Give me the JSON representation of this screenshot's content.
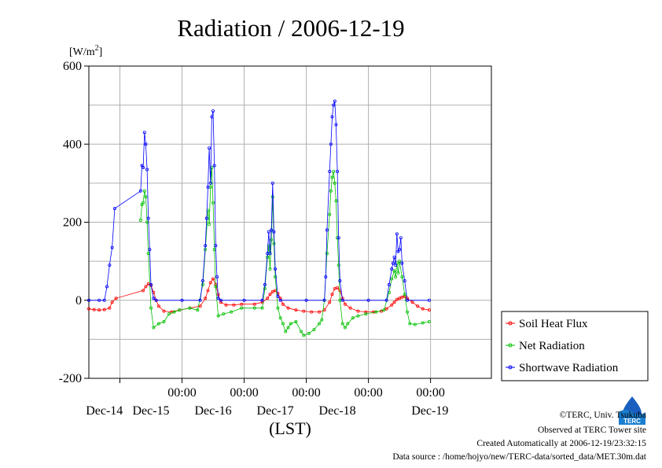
{
  "chart_data": {
    "type": "line",
    "title": "Radiation / 2006-12-19",
    "ylabel": "[W/m",
    "ylabel_sup": "2",
    "ylabel_close": "]",
    "xlabel": "(LST)",
    "ylim": [
      -200,
      600
    ],
    "yticks": [
      -200,
      0,
      200,
      400,
      600
    ],
    "xlim": [
      "2006-12-13T12:00",
      "2006-12-19T23:30"
    ],
    "x_time_ticks": [
      "00:00",
      "00:00",
      "00:00",
      "00:00",
      "00:00"
    ],
    "x_day_labels": [
      "Dec-14",
      "Dec-15",
      "Dec-16",
      "Dec-17",
      "Dec-18",
      "Dec-19"
    ],
    "grid": true,
    "legend_position": "bottom-right-outside",
    "series": [
      {
        "name": "Soil Heat Flux",
        "color": "#ff0000",
        "points": [
          [
            "2006-12-13T12:00",
            -22
          ],
          [
            "2006-12-13T14:00",
            -24
          ],
          [
            "2006-12-13T16:00",
            -25
          ],
          [
            "2006-12-13T18:00",
            -24
          ],
          [
            "2006-12-13T20:00",
            -20
          ],
          [
            "2006-12-13T21:00",
            -5
          ],
          [
            "2006-12-13T22:30",
            5
          ],
          [
            "2006-12-14T09:00",
            25
          ],
          [
            "2006-12-14T10:00",
            35
          ],
          [
            "2006-12-14T11:00",
            42
          ],
          [
            "2006-12-14T12:00",
            38
          ],
          [
            "2006-12-14T13:00",
            20
          ],
          [
            "2006-12-14T14:00",
            0
          ],
          [
            "2006-12-14T15:00",
            -15
          ],
          [
            "2006-12-14T17:00",
            -28
          ],
          [
            "2006-12-14T20:00",
            -30
          ],
          [
            "2006-12-14T23:00",
            -25
          ],
          [
            "2006-12-15T03:00",
            -20
          ],
          [
            "2006-12-15T07:00",
            -15
          ],
          [
            "2006-12-15T09:00",
            5
          ],
          [
            "2006-12-15T10:00",
            25
          ],
          [
            "2006-12-15T11:00",
            45
          ],
          [
            "2006-12-15T12:00",
            55
          ],
          [
            "2006-12-15T13:00",
            40
          ],
          [
            "2006-12-15T14:00",
            15
          ],
          [
            "2006-12-15T15:00",
            -5
          ],
          [
            "2006-12-15T17:00",
            -12
          ],
          [
            "2006-12-15T20:00",
            -12
          ],
          [
            "2006-12-15T23:00",
            -10
          ],
          [
            "2006-12-16T04:00",
            -10
          ],
          [
            "2006-12-16T07:00",
            -5
          ],
          [
            "2006-12-16T09:00",
            5
          ],
          [
            "2006-12-16T10:00",
            15
          ],
          [
            "2006-12-16T11:00",
            22
          ],
          [
            "2006-12-16T12:00",
            25
          ],
          [
            "2006-12-16T13:00",
            18
          ],
          [
            "2006-12-16T14:00",
            5
          ],
          [
            "2006-12-16T15:00",
            -10
          ],
          [
            "2006-12-16T17:00",
            -20
          ],
          [
            "2006-12-16T20:00",
            -25
          ],
          [
            "2006-12-16T23:00",
            -28
          ],
          [
            "2006-12-17T02:00",
            -30
          ],
          [
            "2006-12-17T05:00",
            -30
          ],
          [
            "2006-12-17T07:00",
            -25
          ],
          [
            "2006-12-17T09:00",
            -5
          ],
          [
            "2006-12-17T10:00",
            15
          ],
          [
            "2006-12-17T11:00",
            30
          ],
          [
            "2006-12-17T12:00",
            32
          ],
          [
            "2006-12-17T13:00",
            25
          ],
          [
            "2006-12-17T14:00",
            5
          ],
          [
            "2006-12-17T15:00",
            -10
          ],
          [
            "2006-12-17T17:00",
            -20
          ],
          [
            "2006-12-17T20:00",
            -28
          ],
          [
            "2006-12-17T23:00",
            -30
          ],
          [
            "2006-12-18T02:00",
            -30
          ],
          [
            "2006-12-18T05:00",
            -28
          ],
          [
            "2006-12-18T07:00",
            -22
          ],
          [
            "2006-12-18T09:00",
            -12
          ],
          [
            "2006-12-18T10:00",
            -5
          ],
          [
            "2006-12-18T11:00",
            2
          ],
          [
            "2006-12-18T12:00",
            5
          ],
          [
            "2006-12-18T13:00",
            8
          ],
          [
            "2006-12-18T14:00",
            10
          ],
          [
            "2006-12-18T15:00",
            5
          ],
          [
            "2006-12-18T17:00",
            -5
          ],
          [
            "2006-12-18T19:00",
            -15
          ],
          [
            "2006-12-18T21:00",
            -22
          ],
          [
            "2006-12-18T23:30",
            -25
          ]
        ]
      },
      {
        "name": "Net Radiation",
        "color": "#00c000",
        "points": [
          [
            "2006-12-14T08:00",
            205
          ],
          [
            "2006-12-14T08:30",
            245
          ],
          [
            "2006-12-14T09:00",
            250
          ],
          [
            "2006-12-14T09:30",
            280
          ],
          [
            "2006-12-14T10:00",
            265
          ],
          [
            "2006-12-14T10:30",
            200
          ],
          [
            "2006-12-14T11:00",
            120
          ],
          [
            "2006-12-14T12:00",
            -20
          ],
          [
            "2006-12-14T13:00",
            -70
          ],
          [
            "2006-12-14T15:00",
            -60
          ],
          [
            "2006-12-14T17:00",
            -55
          ],
          [
            "2006-12-14T19:00",
            -35
          ],
          [
            "2006-12-14T21:00",
            -30
          ],
          [
            "2006-12-14T23:00",
            -25
          ],
          [
            "2006-12-15T03:00",
            -20
          ],
          [
            "2006-12-15T06:00",
            -25
          ],
          [
            "2006-12-15T08:00",
            40
          ],
          [
            "2006-12-15T09:00",
            130
          ],
          [
            "2006-12-15T10:00",
            230
          ],
          [
            "2006-12-15T10:30",
            195
          ],
          [
            "2006-12-15T11:00",
            290
          ],
          [
            "2006-12-15T11:30",
            340
          ],
          [
            "2006-12-15T12:00",
            250
          ],
          [
            "2006-12-15T12:30",
            130
          ],
          [
            "2006-12-15T13:00",
            35
          ],
          [
            "2006-12-15T14:00",
            -40
          ],
          [
            "2006-12-15T16:00",
            -35
          ],
          [
            "2006-12-15T19:00",
            -30
          ],
          [
            "2006-12-15T23:00",
            -20
          ],
          [
            "2006-12-16T04:00",
            -20
          ],
          [
            "2006-12-16T07:00",
            -20
          ],
          [
            "2006-12-16T08:00",
            30
          ],
          [
            "2006-12-16T09:00",
            110
          ],
          [
            "2006-12-16T09:30",
            140
          ],
          [
            "2006-12-16T10:00",
            80
          ],
          [
            "2006-12-16T10:30",
            155
          ],
          [
            "2006-12-16T11:00",
            265
          ],
          [
            "2006-12-16T11:30",
            145
          ],
          [
            "2006-12-16T12:00",
            60
          ],
          [
            "2006-12-16T13:00",
            -20
          ],
          [
            "2006-12-16T14:00",
            -45
          ],
          [
            "2006-12-16T15:00",
            -60
          ],
          [
            "2006-12-16T16:00",
            -80
          ],
          [
            "2006-12-16T17:00",
            -70
          ],
          [
            "2006-12-16T18:00",
            -60
          ],
          [
            "2006-12-16T20:00",
            -55
          ],
          [
            "2006-12-16T22:00",
            -80
          ],
          [
            "2006-12-16T23:00",
            -90
          ],
          [
            "2006-12-17T01:00",
            -85
          ],
          [
            "2006-12-17T03:00",
            -75
          ],
          [
            "2006-12-17T05:00",
            -60
          ],
          [
            "2006-12-17T06:00",
            -50
          ],
          [
            "2006-12-17T07:00",
            0
          ],
          [
            "2006-12-17T08:00",
            120
          ],
          [
            "2006-12-17T09:00",
            220
          ],
          [
            "2006-12-17T09:30",
            280
          ],
          [
            "2006-12-17T10:00",
            315
          ],
          [
            "2006-12-17T10:30",
            330
          ],
          [
            "2006-12-17T11:00",
            300
          ],
          [
            "2006-12-17T11:30",
            255
          ],
          [
            "2006-12-17T12:00",
            160
          ],
          [
            "2006-12-17T12:30",
            90
          ],
          [
            "2006-12-17T13:00",
            0
          ],
          [
            "2006-12-17T14:00",
            -60
          ],
          [
            "2006-12-17T15:00",
            -70
          ],
          [
            "2006-12-17T16:00",
            -60
          ],
          [
            "2006-12-17T18:00",
            -45
          ],
          [
            "2006-12-17T20:00",
            -40
          ],
          [
            "2006-12-17T23:00",
            -35
          ],
          [
            "2006-12-18T03:00",
            -30
          ],
          [
            "2006-12-18T06:00",
            -25
          ],
          [
            "2006-12-18T08:00",
            20
          ],
          [
            "2006-12-18T09:00",
            55
          ],
          [
            "2006-12-18T10:00",
            75
          ],
          [
            "2006-12-18T10:30",
            60
          ],
          [
            "2006-12-18T11:00",
            95
          ],
          [
            "2006-12-18T11:30",
            70
          ],
          [
            "2006-12-18T12:00",
            100
          ],
          [
            "2006-12-18T13:00",
            60
          ],
          [
            "2006-12-18T14:00",
            15
          ],
          [
            "2006-12-18T15:00",
            -30
          ],
          [
            "2006-12-18T16:00",
            -60
          ],
          [
            "2006-12-18T18:00",
            -62
          ],
          [
            "2006-12-18T21:00",
            -58
          ],
          [
            "2006-12-18T23:30",
            -55
          ]
        ]
      },
      {
        "name": "Shortwave Radiation",
        "color": "#0000ff",
        "points": [
          [
            "2006-12-13T12:00",
            0
          ],
          [
            "2006-12-13T16:00",
            0
          ],
          [
            "2006-12-13T18:00",
            0
          ],
          [
            "2006-12-13T19:00",
            35
          ],
          [
            "2006-12-13T20:00",
            90
          ],
          [
            "2006-12-13T21:00",
            135
          ],
          [
            "2006-12-13T22:00",
            235
          ],
          [
            "2006-12-14T08:00",
            280
          ],
          [
            "2006-12-14T08:30",
            345
          ],
          [
            "2006-12-14T09:00",
            340
          ],
          [
            "2006-12-14T09:30",
            430
          ],
          [
            "2006-12-14T10:00",
            400
          ],
          [
            "2006-12-14T10:30",
            335
          ],
          [
            "2006-12-14T11:00",
            210
          ],
          [
            "2006-12-14T11:30",
            130
          ],
          [
            "2006-12-14T12:00",
            40
          ],
          [
            "2006-12-14T13:00",
            5
          ],
          [
            "2006-12-14T14:00",
            0
          ],
          [
            "2006-12-15T00:00",
            0
          ],
          [
            "2006-12-15T07:00",
            0
          ],
          [
            "2006-12-15T08:00",
            50
          ],
          [
            "2006-12-15T09:00",
            140
          ],
          [
            "2006-12-15T09:30",
            210
          ],
          [
            "2006-12-15T10:00",
            290
          ],
          [
            "2006-12-15T10:30",
            390
          ],
          [
            "2006-12-15T11:00",
            300
          ],
          [
            "2006-12-15T11:30",
            470
          ],
          [
            "2006-12-15T12:00",
            485
          ],
          [
            "2006-12-15T12:30",
            345
          ],
          [
            "2006-12-15T13:00",
            140
          ],
          [
            "2006-12-15T13:30",
            60
          ],
          [
            "2006-12-15T14:00",
            5
          ],
          [
            "2006-12-15T15:00",
            0
          ],
          [
            "2006-12-16T00:00",
            0
          ],
          [
            "2006-12-16T07:00",
            0
          ],
          [
            "2006-12-16T08:00",
            40
          ],
          [
            "2006-12-16T09:00",
            120
          ],
          [
            "2006-12-16T09:30",
            175
          ],
          [
            "2006-12-16T10:00",
            120
          ],
          [
            "2006-12-16T10:30",
            180
          ],
          [
            "2006-12-16T11:00",
            300
          ],
          [
            "2006-12-16T11:30",
            175
          ],
          [
            "2006-12-16T12:00",
            80
          ],
          [
            "2006-12-16T13:00",
            10
          ],
          [
            "2006-12-16T14:00",
            0
          ],
          [
            "2006-12-17T00:00",
            0
          ],
          [
            "2006-12-17T07:00",
            0
          ],
          [
            "2006-12-17T07:30",
            60
          ],
          [
            "2006-12-17T08:00",
            180
          ],
          [
            "2006-12-17T09:00",
            330
          ],
          [
            "2006-12-17T09:30",
            400
          ],
          [
            "2006-12-17T10:00",
            470
          ],
          [
            "2006-12-17T10:30",
            500
          ],
          [
            "2006-12-17T11:00",
            510
          ],
          [
            "2006-12-17T11:30",
            450
          ],
          [
            "2006-12-17T12:00",
            330
          ],
          [
            "2006-12-17T12:30",
            160
          ],
          [
            "2006-12-17T13:00",
            50
          ],
          [
            "2006-12-17T14:00",
            0
          ],
          [
            "2006-12-18T00:00",
            0
          ],
          [
            "2006-12-18T07:00",
            0
          ],
          [
            "2006-12-18T08:00",
            40
          ],
          [
            "2006-12-18T09:00",
            80
          ],
          [
            "2006-12-18T09:30",
            95
          ],
          [
            "2006-12-18T10:00",
            110
          ],
          [
            "2006-12-18T10:30",
            90
          ],
          [
            "2006-12-18T11:00",
            170
          ],
          [
            "2006-12-18T11:30",
            125
          ],
          [
            "2006-12-18T12:00",
            130
          ],
          [
            "2006-12-18T12:30",
            160
          ],
          [
            "2006-12-18T13:00",
            95
          ],
          [
            "2006-12-18T14:00",
            50
          ],
          [
            "2006-12-18T15:00",
            0
          ],
          [
            "2006-12-18T23:30",
            0
          ]
        ]
      }
    ]
  },
  "credits": {
    "copyright": "©TERC, Univ. Tsukuba",
    "observed": "Observed at TERC Tower site",
    "created": "Created Automatically at 2006-12-19/23:32:15",
    "source": "Data source : /home/hojyo/new/TERC-data/sorted_data/MET.30m.dat",
    "logo_text": "TERC"
  }
}
